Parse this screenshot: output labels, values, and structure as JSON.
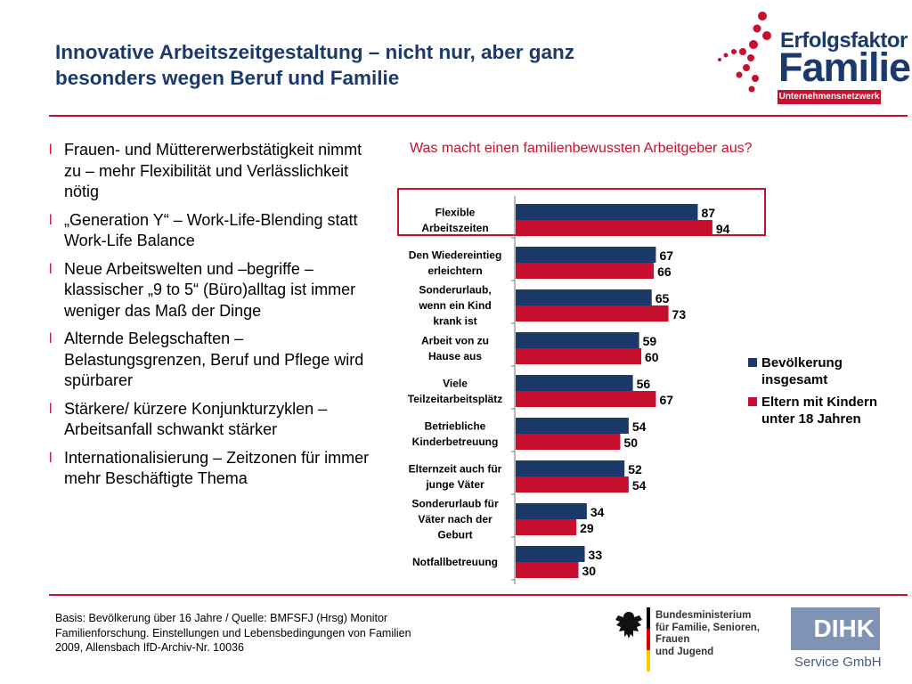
{
  "header": {
    "title": "Innovative Arbeitszeitgestaltung – nicht nur, aber ganz besonders wegen Beruf und Familie",
    "logo": {
      "line1": "Erfolgsfaktor",
      "line2": "Familie",
      "line3": "Unternehmensnetzwerk"
    }
  },
  "bullets": [
    "Frauen- und Müttererwerbstätigkeit nimmt zu  – mehr Flexibilität und Verlässlichkeit nötig",
    "„Generation Y“ – Work-Life-Blending statt Work-Life Balance",
    "Neue Arbeitswelten und –begriffe – klassischer „9 to 5“ (Büro)alltag ist immer weniger das Maß der Dinge",
    "Alternde Belegschaften – Belastungsgrenzen, Beruf und Pflege wird spürbarer",
    "Stärkere/ kürzere Konjunkturzyklen –Arbeitsanfall schwankt stärker",
    "Internationalisierung – Zeitzonen für immer mehr Beschäftigte Thema"
  ],
  "bullet_marker": "l",
  "chart_data": {
    "type": "bar",
    "orientation": "horizontal",
    "title": "Was macht einen familienbewussten Arbeitgeber aus?",
    "categories": [
      [
        "Flexible",
        "Arbeitszeiten"
      ],
      [
        "Den Wiedereintieg",
        "erleichtern"
      ],
      [
        "Sonderurlaub,",
        "wenn ein Kind",
        "krank ist"
      ],
      [
        "Arbeit von zu",
        "Hause aus"
      ],
      [
        "Viele",
        "Teilzeitarbeitsplätz"
      ],
      [
        "Betriebliche",
        "Kinderbetreuung"
      ],
      [
        "Elternzeit auch für",
        "junge Väter"
      ],
      [
        "Sonderurlaub für",
        "Väter nach der",
        "Geburt"
      ],
      [
        "Notfallbetreuung"
      ]
    ],
    "series": [
      {
        "name": "Bevölkerung insgesamt",
        "color": "#1b3a6b",
        "values": [
          87,
          67,
          65,
          59,
          56,
          54,
          52,
          34,
          33
        ]
      },
      {
        "name": "Eltern mit Kindern unter 18 Jahren",
        "color": "#c8102e",
        "values": [
          94,
          66,
          73,
          60,
          67,
          50,
          54,
          29,
          30
        ]
      }
    ],
    "xlim": [
      0,
      100
    ],
    "highlight_category_index": 0,
    "legend_position": "right",
    "legend": [
      {
        "text": "Bevölkerung insgesamt",
        "color": "#1b3a6b"
      },
      {
        "text": "Eltern mit Kindern unter 18 Jahren",
        "color": "#c8102e"
      }
    ]
  },
  "footnote": "Basis: Bevölkerung über 16 Jahre / Quelle: BMFSFJ (Hrsg) Monitor Familienforschung. Einstellungen und Lebensbedingungen von Familien 2009, Allensbach IfD-Archiv-Nr. 10036",
  "ministry": {
    "lines": [
      "Bundesministerium",
      "für Familie, Senioren, Frauen",
      "und Jugend"
    ]
  },
  "dihk": {
    "name": "DIHK",
    "sub": "Service GmbH"
  },
  "colors": {
    "accent": "#c8102e",
    "navy": "#1b3a6b"
  }
}
